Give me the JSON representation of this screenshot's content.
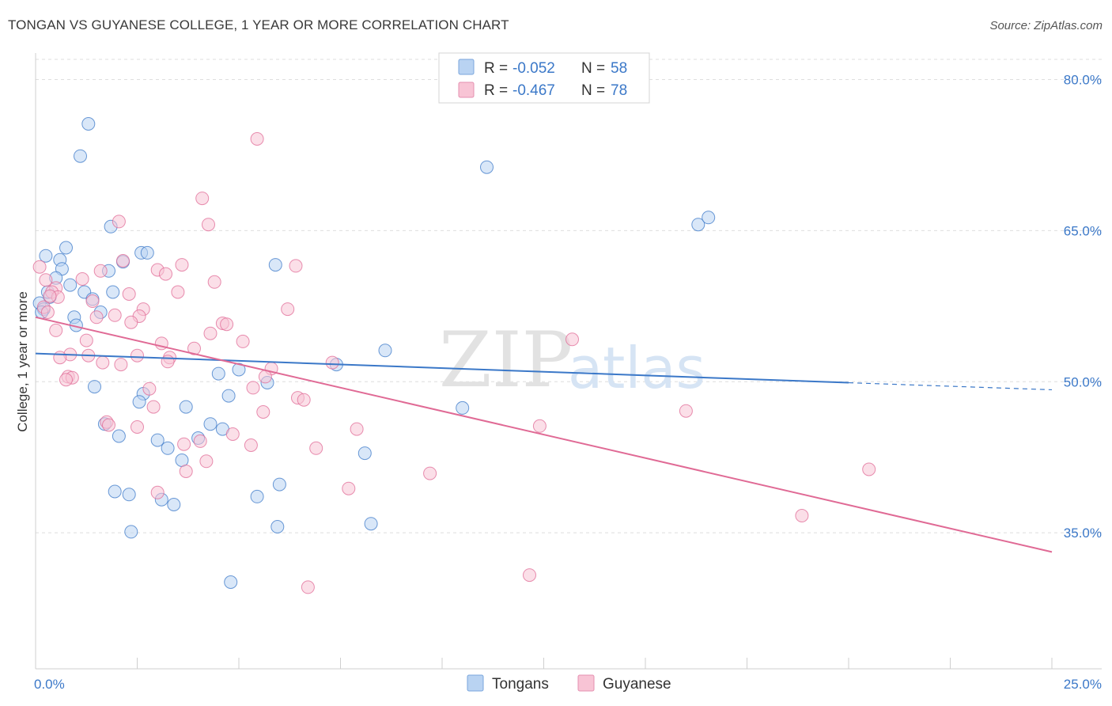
{
  "title": "TONGAN VS GUYANESE COLLEGE, 1 YEAR OR MORE CORRELATION CHART",
  "source": "Source: ZipAtlas.com",
  "watermark": {
    "part1": "ZIP",
    "part2": "atlas"
  },
  "chart_data": {
    "type": "scatter",
    "xlabel": "",
    "ylabel": "College, 1 year or more",
    "xlim": [
      0,
      25
    ],
    "ylim": [
      21.5,
      82
    ],
    "x_tick_labels": [
      {
        "value": 0,
        "label": "0.0%"
      },
      {
        "value": 25,
        "label": "25.0%"
      }
    ],
    "y_ticks": [
      {
        "value": 80,
        "label": "80.0%"
      },
      {
        "value": 65,
        "label": "65.0%"
      },
      {
        "value": 50,
        "label": "50.0%"
      },
      {
        "value": 35,
        "label": "35.0%"
      }
    ],
    "legend": [
      {
        "r_label": "R =",
        "r_value": "-0.052",
        "n_label": "N =",
        "n_value": "58"
      },
      {
        "r_label": "R =",
        "r_value": "-0.467",
        "n_label": "N =",
        "n_value": "78"
      }
    ],
    "series": [
      {
        "name": "Tongans",
        "color": "#3b78c8",
        "fill": "#b9d3f2",
        "trend": {
          "x0": 0,
          "y0": 52.8,
          "x1": 20,
          "y1": 49.9,
          "dash_to_x": 25,
          "dash_to_y": 49.2
        },
        "points": [
          [
            1.3,
            75.6
          ],
          [
            1.1,
            72.4
          ],
          [
            0.25,
            62.5
          ],
          [
            0.75,
            63.3
          ],
          [
            0.6,
            62.1
          ],
          [
            0.65,
            61.2
          ],
          [
            0.5,
            60.3
          ],
          [
            0.85,
            59.6
          ],
          [
            1.2,
            58.9
          ],
          [
            0.35,
            58.4
          ],
          [
            0.1,
            57.8
          ],
          [
            1.4,
            58.2
          ],
          [
            0.2,
            57.2
          ],
          [
            0.95,
            56.4
          ],
          [
            1.6,
            56.9
          ],
          [
            1.0,
            55.6
          ],
          [
            1.9,
            58.9
          ],
          [
            1.8,
            61.0
          ],
          [
            1.85,
            65.4
          ],
          [
            2.6,
            62.8
          ],
          [
            2.75,
            62.8
          ],
          [
            2.15,
            61.9
          ],
          [
            5.9,
            61.6
          ],
          [
            8.6,
            53.1
          ],
          [
            11.1,
            71.3
          ],
          [
            16.3,
            65.6
          ],
          [
            16.55,
            66.3
          ],
          [
            7.4,
            51.7
          ],
          [
            10.5,
            47.4
          ],
          [
            4.5,
            50.8
          ],
          [
            5.0,
            51.2
          ],
          [
            5.7,
            49.9
          ],
          [
            1.45,
            49.5
          ],
          [
            2.65,
            48.8
          ],
          [
            2.55,
            48.0
          ],
          [
            3.7,
            47.5
          ],
          [
            4.75,
            48.6
          ],
          [
            1.7,
            45.8
          ],
          [
            2.05,
            44.6
          ],
          [
            4.3,
            45.8
          ],
          [
            4.6,
            45.3
          ],
          [
            4.0,
            44.4
          ],
          [
            3.0,
            44.2
          ],
          [
            3.25,
            43.4
          ],
          [
            3.6,
            42.2
          ],
          [
            8.1,
            42.9
          ],
          [
            1.95,
            39.1
          ],
          [
            2.3,
            38.8
          ],
          [
            3.1,
            38.3
          ],
          [
            3.4,
            37.8
          ],
          [
            5.45,
            38.6
          ],
          [
            6.0,
            39.8
          ],
          [
            2.35,
            35.1
          ],
          [
            5.95,
            35.6
          ],
          [
            8.25,
            35.9
          ],
          [
            4.8,
            30.1
          ],
          [
            0.3,
            58.9
          ],
          [
            0.15,
            56.9
          ]
        ]
      },
      {
        "name": "Guyanese",
        "color": "#e06a95",
        "fill": "#f8c4d5",
        "trend": {
          "x0": 0,
          "y0": 56.4,
          "x1": 25,
          "y1": 33.1
        },
        "points": [
          [
            5.45,
            74.1
          ],
          [
            4.1,
            68.2
          ],
          [
            4.25,
            65.6
          ],
          [
            2.05,
            65.9
          ],
          [
            0.1,
            61.4
          ],
          [
            2.15,
            62.0
          ],
          [
            3.0,
            61.1
          ],
          [
            3.2,
            60.7
          ],
          [
            3.6,
            61.6
          ],
          [
            1.6,
            61.0
          ],
          [
            1.15,
            60.2
          ],
          [
            4.4,
            59.9
          ],
          [
            6.4,
            61.5
          ],
          [
            0.25,
            60.1
          ],
          [
            0.5,
            59.3
          ],
          [
            0.4,
            58.9
          ],
          [
            3.5,
            58.9
          ],
          [
            0.55,
            58.4
          ],
          [
            2.3,
            58.7
          ],
          [
            1.4,
            58.0
          ],
          [
            0.2,
            57.4
          ],
          [
            1.95,
            56.6
          ],
          [
            2.65,
            57.2
          ],
          [
            1.5,
            56.4
          ],
          [
            6.2,
            57.2
          ],
          [
            2.55,
            56.5
          ],
          [
            2.35,
            55.9
          ],
          [
            4.6,
            55.8
          ],
          [
            4.7,
            55.7
          ],
          [
            4.3,
            54.8
          ],
          [
            0.5,
            55.1
          ],
          [
            1.25,
            54.1
          ],
          [
            5.1,
            54.0
          ],
          [
            3.1,
            53.8
          ],
          [
            3.9,
            53.3
          ],
          [
            13.2,
            54.2
          ],
          [
            0.85,
            52.7
          ],
          [
            1.3,
            52.6
          ],
          [
            0.6,
            52.4
          ],
          [
            2.5,
            52.6
          ],
          [
            3.3,
            52.4
          ],
          [
            3.25,
            52.0
          ],
          [
            1.65,
            51.9
          ],
          [
            2.1,
            51.7
          ],
          [
            7.3,
            51.9
          ],
          [
            5.8,
            51.3
          ],
          [
            0.8,
            50.5
          ],
          [
            0.9,
            50.4
          ],
          [
            0.75,
            50.2
          ],
          [
            5.65,
            50.5
          ],
          [
            5.35,
            49.4
          ],
          [
            6.45,
            48.4
          ],
          [
            6.6,
            48.2
          ],
          [
            2.9,
            47.5
          ],
          [
            5.6,
            47.0
          ],
          [
            16.0,
            47.1
          ],
          [
            1.75,
            46.0
          ],
          [
            1.8,
            45.7
          ],
          [
            2.5,
            45.5
          ],
          [
            7.9,
            45.3
          ],
          [
            12.4,
            45.6
          ],
          [
            3.65,
            43.8
          ],
          [
            4.05,
            44.1
          ],
          [
            5.3,
            43.7
          ],
          [
            6.9,
            43.4
          ],
          [
            4.2,
            42.1
          ],
          [
            3.7,
            41.1
          ],
          [
            9.7,
            40.9
          ],
          [
            20.5,
            41.3
          ],
          [
            3.0,
            39.0
          ],
          [
            7.7,
            39.4
          ],
          [
            18.85,
            36.7
          ],
          [
            12.15,
            30.8
          ],
          [
            6.7,
            29.6
          ],
          [
            0.3,
            56.9
          ],
          [
            0.35,
            58.5
          ],
          [
            2.8,
            49.3
          ],
          [
            4.85,
            44.8
          ]
        ]
      }
    ]
  }
}
